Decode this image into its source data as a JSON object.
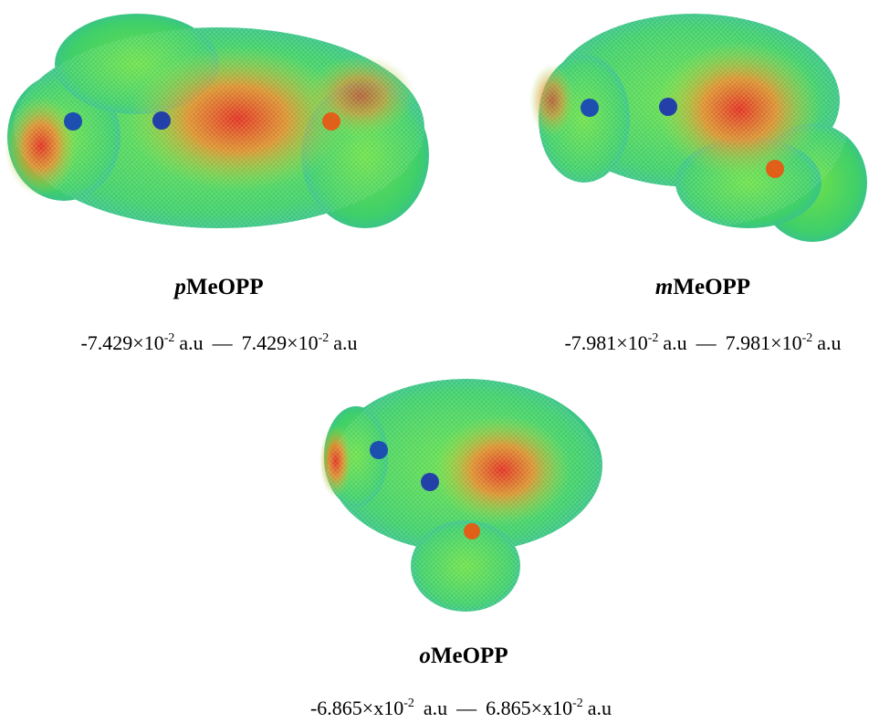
{
  "figures": [
    {
      "label": {
        "prefix": "p",
        "name": "MeOPP"
      },
      "range": {
        "lower": {
          "mantissa": "-7.429×10",
          "exponent": "-2",
          "unit": "a.u"
        },
        "separator": "—",
        "upper": {
          "mantissa": "7.429×10",
          "exponent": "-2",
          "unit": "a.u"
        }
      }
    },
    {
      "label": {
        "prefix": "m",
        "name": "MeOPP"
      },
      "range": {
        "lower": {
          "mantissa": "-7.981×10",
          "exponent": "-2",
          "unit": "a.u"
        },
        "separator": "—",
        "upper": {
          "mantissa": "7.981×10",
          "exponent": "-2",
          "unit": "a.u"
        }
      }
    },
    {
      "label": {
        "prefix": "o",
        "name": "MeOPP"
      },
      "range": {
        "lower": {
          "mantissa": "-6.865×x10",
          "exponent": "-2",
          "unit": "a.u"
        },
        "separator": "—",
        "upper": {
          "mantissa": "6.865×x10",
          "exponent": "-2",
          "unit": "a.u"
        }
      }
    }
  ]
}
